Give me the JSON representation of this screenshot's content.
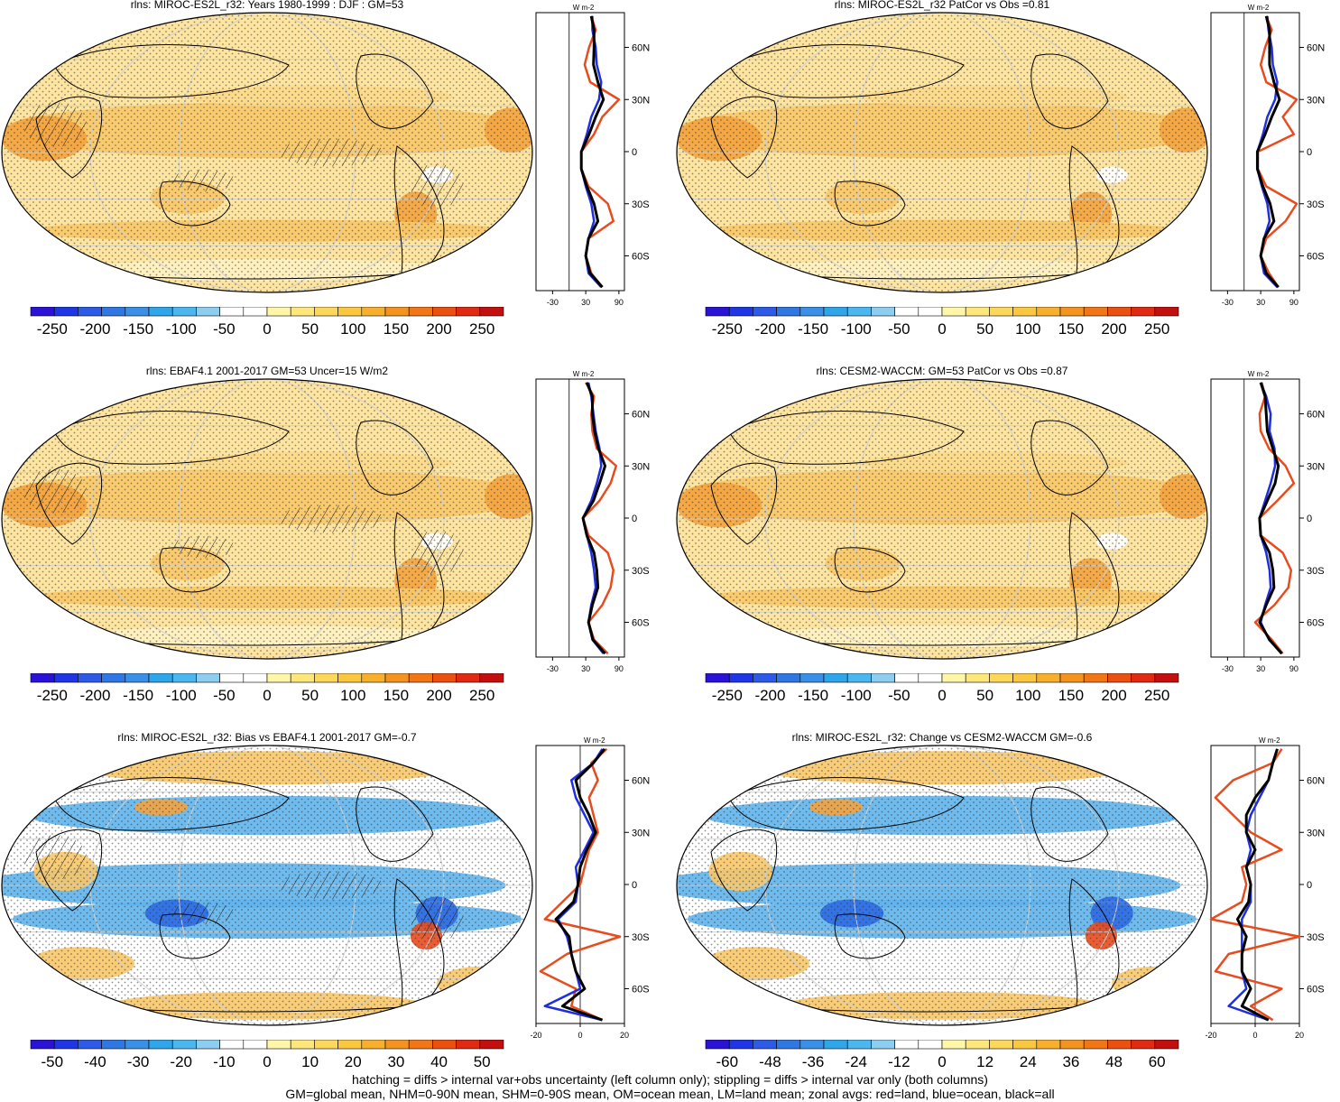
{
  "colors": {
    "ramp_full": [
      "#2a12d6",
      "#1e36e6",
      "#2d5be8",
      "#2f77e3",
      "#3a8fe6",
      "#2fa6ea",
      "#4ab7ef",
      "#8ccdf0",
      "#ffffff",
      "#ffffff",
      "#fff6a8",
      "#fde67a",
      "#fdd75a",
      "#fbc73e",
      "#f8b02c",
      "#f59320",
      "#f27516",
      "#ec5010",
      "#e02a12",
      "#c40f0f"
    ],
    "map_bg": "#fde4a0",
    "map_warm": "#f8c868",
    "map_hot": "#f3a33e",
    "map_cool": "#5fb4ec",
    "map_deep": "#2f6be3",
    "land": "#e84b1e",
    "ocean": "#1f2ee0",
    "all": "#000000"
  },
  "footer": {
    "line1": "hatching = diffs > internal var+obs uncertainty (left column only); stippling = diffs > internal var only (both columns)",
    "line2": "GM=global mean, NHM=0-90N mean, SHM=0-90S mean, OM=ocean mean, LM=land mean; zonal avgs: red=land, blue=ocean, black=all"
  },
  "chart_data": [
    {
      "type": "heatmap",
      "title": "rlns: MIROC-ES2L_r32: Years 1980-1999 : DJF : GM=53",
      "colorbar_ticks": [
        "-250",
        "-200",
        "-150",
        "-100",
        "-50",
        "0",
        "50",
        "100",
        "150",
        "200",
        "250"
      ],
      "colorbar_range": [
        -275,
        275
      ],
      "field": "positive",
      "zonal": {
        "unit": "W m-2",
        "xticks": [
          "-30",
          "30",
          "90"
        ],
        "xlim": [
          -60,
          100
        ],
        "yticks": [
          "60N",
          "30N",
          "0",
          "30S",
          "60S"
        ],
        "ylim": [
          -80,
          80
        ],
        "lat": [
          78,
          70,
          60,
          50,
          40,
          30,
          20,
          10,
          0,
          -10,
          -20,
          -30,
          -40,
          -50,
          -60,
          -70,
          -78
        ],
        "land": [
          40,
          48,
          36,
          28,
          38,
          90,
          60,
          45,
          22,
          22,
          35,
          70,
          80,
          35,
          30,
          40,
          60
        ],
        "ocean": [
          42,
          42,
          48,
          50,
          58,
          54,
          40,
          32,
          22,
          22,
          30,
          40,
          45,
          35,
          30,
          35,
          58
        ],
        "all": [
          40,
          45,
          45,
          44,
          52,
          62,
          48,
          36,
          22,
          22,
          32,
          45,
          52,
          35,
          30,
          38,
          60
        ]
      }
    },
    {
      "type": "heatmap",
      "title": "rlns: MIROC-ES2L_r32 PatCor vs Obs =0.81",
      "colorbar_ticks": [
        "-250",
        "-200",
        "-150",
        "-100",
        "-50",
        "0",
        "50",
        "100",
        "150",
        "200",
        "250"
      ],
      "colorbar_range": [
        -275,
        275
      ],
      "field": "positive",
      "zonal": {
        "unit": "W m-2",
        "xticks": [
          "-30",
          "30",
          "90"
        ],
        "xlim": [
          -60,
          100
        ],
        "yticks": [
          "60N",
          "30N",
          "0",
          "30S",
          "60S"
        ],
        "ylim": [
          -80,
          80
        ],
        "lat": [
          78,
          70,
          60,
          50,
          40,
          30,
          20,
          10,
          0,
          -10,
          -20,
          -30,
          -40,
          -50,
          -60,
          -70,
          -78
        ],
        "land": [
          40,
          50,
          38,
          30,
          40,
          95,
          70,
          90,
          25,
          25,
          40,
          95,
          75,
          40,
          30,
          45,
          62
        ],
        "ocean": [
          42,
          44,
          50,
          52,
          60,
          56,
          42,
          34,
          24,
          24,
          32,
          42,
          46,
          36,
          30,
          36,
          60
        ],
        "all": [
          40,
          46,
          46,
          46,
          54,
          64,
          50,
          38,
          24,
          24,
          34,
          47,
          54,
          36,
          30,
          40,
          62
        ]
      }
    },
    {
      "type": "heatmap",
      "title": "rlns: EBAF4.1 2001-2017 GM=53 Uncer=15 W/m2",
      "colorbar_ticks": [
        "-250",
        "-200",
        "-150",
        "-100",
        "-50",
        "0",
        "50",
        "100",
        "150",
        "200",
        "250"
      ],
      "colorbar_range": [
        -275,
        275
      ],
      "field": "positive",
      "zonal": {
        "unit": "W m-2",
        "xticks": [
          "-30",
          "30",
          "90"
        ],
        "xlim": [
          -60,
          100
        ],
        "yticks": [
          "60N",
          "30N",
          "0",
          "30S",
          "60S"
        ],
        "ylim": [
          -80,
          80
        ],
        "lat": [
          78,
          70,
          60,
          50,
          40,
          30,
          20,
          10,
          0,
          -10,
          -20,
          -30,
          -40,
          -50,
          -60,
          -70,
          -78
        ],
        "land": [
          30,
          45,
          40,
          42,
          50,
          85,
          75,
          55,
          25,
          35,
          70,
          80,
          75,
          60,
          35,
          45,
          70
        ],
        "ocean": [
          35,
          40,
          44,
          48,
          55,
          58,
          50,
          40,
          25,
          32,
          40,
          45,
          48,
          40,
          35,
          42,
          62
        ],
        "all": [
          32,
          42,
          42,
          46,
          53,
          65,
          55,
          44,
          25,
          32,
          45,
          50,
          52,
          42,
          35,
          43,
          65
        ]
      }
    },
    {
      "type": "heatmap",
      "title": "rlns: CESM2-WACCM: GM=53 PatCor vs Obs =0.87",
      "colorbar_ticks": [
        "-250",
        "-200",
        "-150",
        "-100",
        "-50",
        "0",
        "50",
        "100",
        "150",
        "200",
        "250"
      ],
      "colorbar_range": [
        -275,
        275
      ],
      "field": "positive",
      "zonal": {
        "unit": "W m-2",
        "xticks": [
          "-30",
          "30",
          "90"
        ],
        "xlim": [
          -60,
          100
        ],
        "yticks": [
          "60N",
          "30N",
          "0",
          "30S",
          "60S"
        ],
        "ylim": [
          -80,
          80
        ],
        "lat": [
          78,
          70,
          60,
          50,
          40,
          30,
          20,
          10,
          0,
          -10,
          -20,
          -30,
          -40,
          -50,
          -60,
          -70,
          -78
        ],
        "land": [
          32,
          38,
          28,
          30,
          45,
          75,
          90,
          60,
          28,
          30,
          70,
          85,
          80,
          55,
          20,
          50,
          70
        ],
        "ocean": [
          30,
          40,
          48,
          46,
          55,
          56,
          48,
          38,
          28,
          30,
          40,
          46,
          48,
          38,
          30,
          45,
          68
        ],
        "all": [
          30,
          38,
          40,
          42,
          52,
          62,
          56,
          42,
          28,
          30,
          46,
          52,
          54,
          40,
          28,
          46,
          68
        ]
      }
    },
    {
      "type": "heatmap",
      "title": "rlns: MIROC-ES2L_r32: Bias vs EBAF4.1 2001-2017 GM=-0.7",
      "colorbar_ticks": [
        "-50",
        "-40",
        "-30",
        "-20",
        "-10",
        "0",
        "10",
        "20",
        "30",
        "40",
        "50"
      ],
      "colorbar_range": [
        -55,
        55
      ],
      "field": "diff",
      "zonal": {
        "unit": "W m-2",
        "xticks": [
          "-20",
          "0",
          "20"
        ],
        "xlim": [
          -20,
          20
        ],
        "yticks": [
          "60N",
          "30N",
          "0",
          "30S",
          "60S"
        ],
        "ylim": [
          -80,
          80
        ],
        "lat": [
          78,
          70,
          60,
          50,
          40,
          30,
          20,
          10,
          0,
          -10,
          -20,
          -30,
          -40,
          -50,
          -60,
          -70,
          -78
        ],
        "land": [
          12,
          5,
          8,
          4,
          6,
          8,
          4,
          2,
          0,
          -8,
          -16,
          18,
          -6,
          -18,
          -2,
          -4,
          10
        ],
        "ocean": [
          10,
          6,
          -4,
          -2,
          2,
          6,
          2,
          -2,
          -1,
          -2,
          -10,
          -6,
          -4,
          -2,
          0,
          -16,
          10
        ],
        "all": [
          11,
          6,
          -2,
          0,
          4,
          7,
          3,
          0,
          -1,
          -3,
          -11,
          -5,
          -4,
          -2,
          2,
          -8,
          10
        ]
      }
    },
    {
      "type": "heatmap",
      "title": "rlns: MIROC-ES2L_r32: Change vs CESM2-WACCM GM=-0.6",
      "colorbar_ticks": [
        "-60",
        "-48",
        "-36",
        "-24",
        "-12",
        "0",
        "12",
        "24",
        "36",
        "48",
        "60"
      ],
      "colorbar_range": [
        -66,
        66
      ],
      "field": "diff",
      "zonal": {
        "unit": "W m-2",
        "xticks": [
          "-20",
          "0",
          "20"
        ],
        "xlim": [
          -20,
          20
        ],
        "yticks": [
          "60N",
          "30N",
          "0",
          "30S",
          "60S"
        ],
        "ylim": [
          -80,
          80
        ],
        "lat": [
          78,
          70,
          60,
          50,
          40,
          30,
          20,
          10,
          0,
          -10,
          -20,
          -30,
          -40,
          -50,
          -60,
          -70,
          -78
        ],
        "land": [
          12,
          8,
          -10,
          -18,
          -10,
          -2,
          12,
          -6,
          -4,
          -6,
          -20,
          22,
          -12,
          -18,
          12,
          -2,
          8
        ],
        "ocean": [
          10,
          8,
          6,
          2,
          -2,
          -4,
          -2,
          -4,
          -2,
          -2,
          -6,
          -6,
          -6,
          -6,
          -4,
          -12,
          6
        ],
        "all": [
          10,
          8,
          6,
          0,
          -4,
          -4,
          0,
          -4,
          -2,
          -3,
          -8,
          -4,
          -6,
          -6,
          -2,
          -6,
          6
        ]
      }
    }
  ]
}
